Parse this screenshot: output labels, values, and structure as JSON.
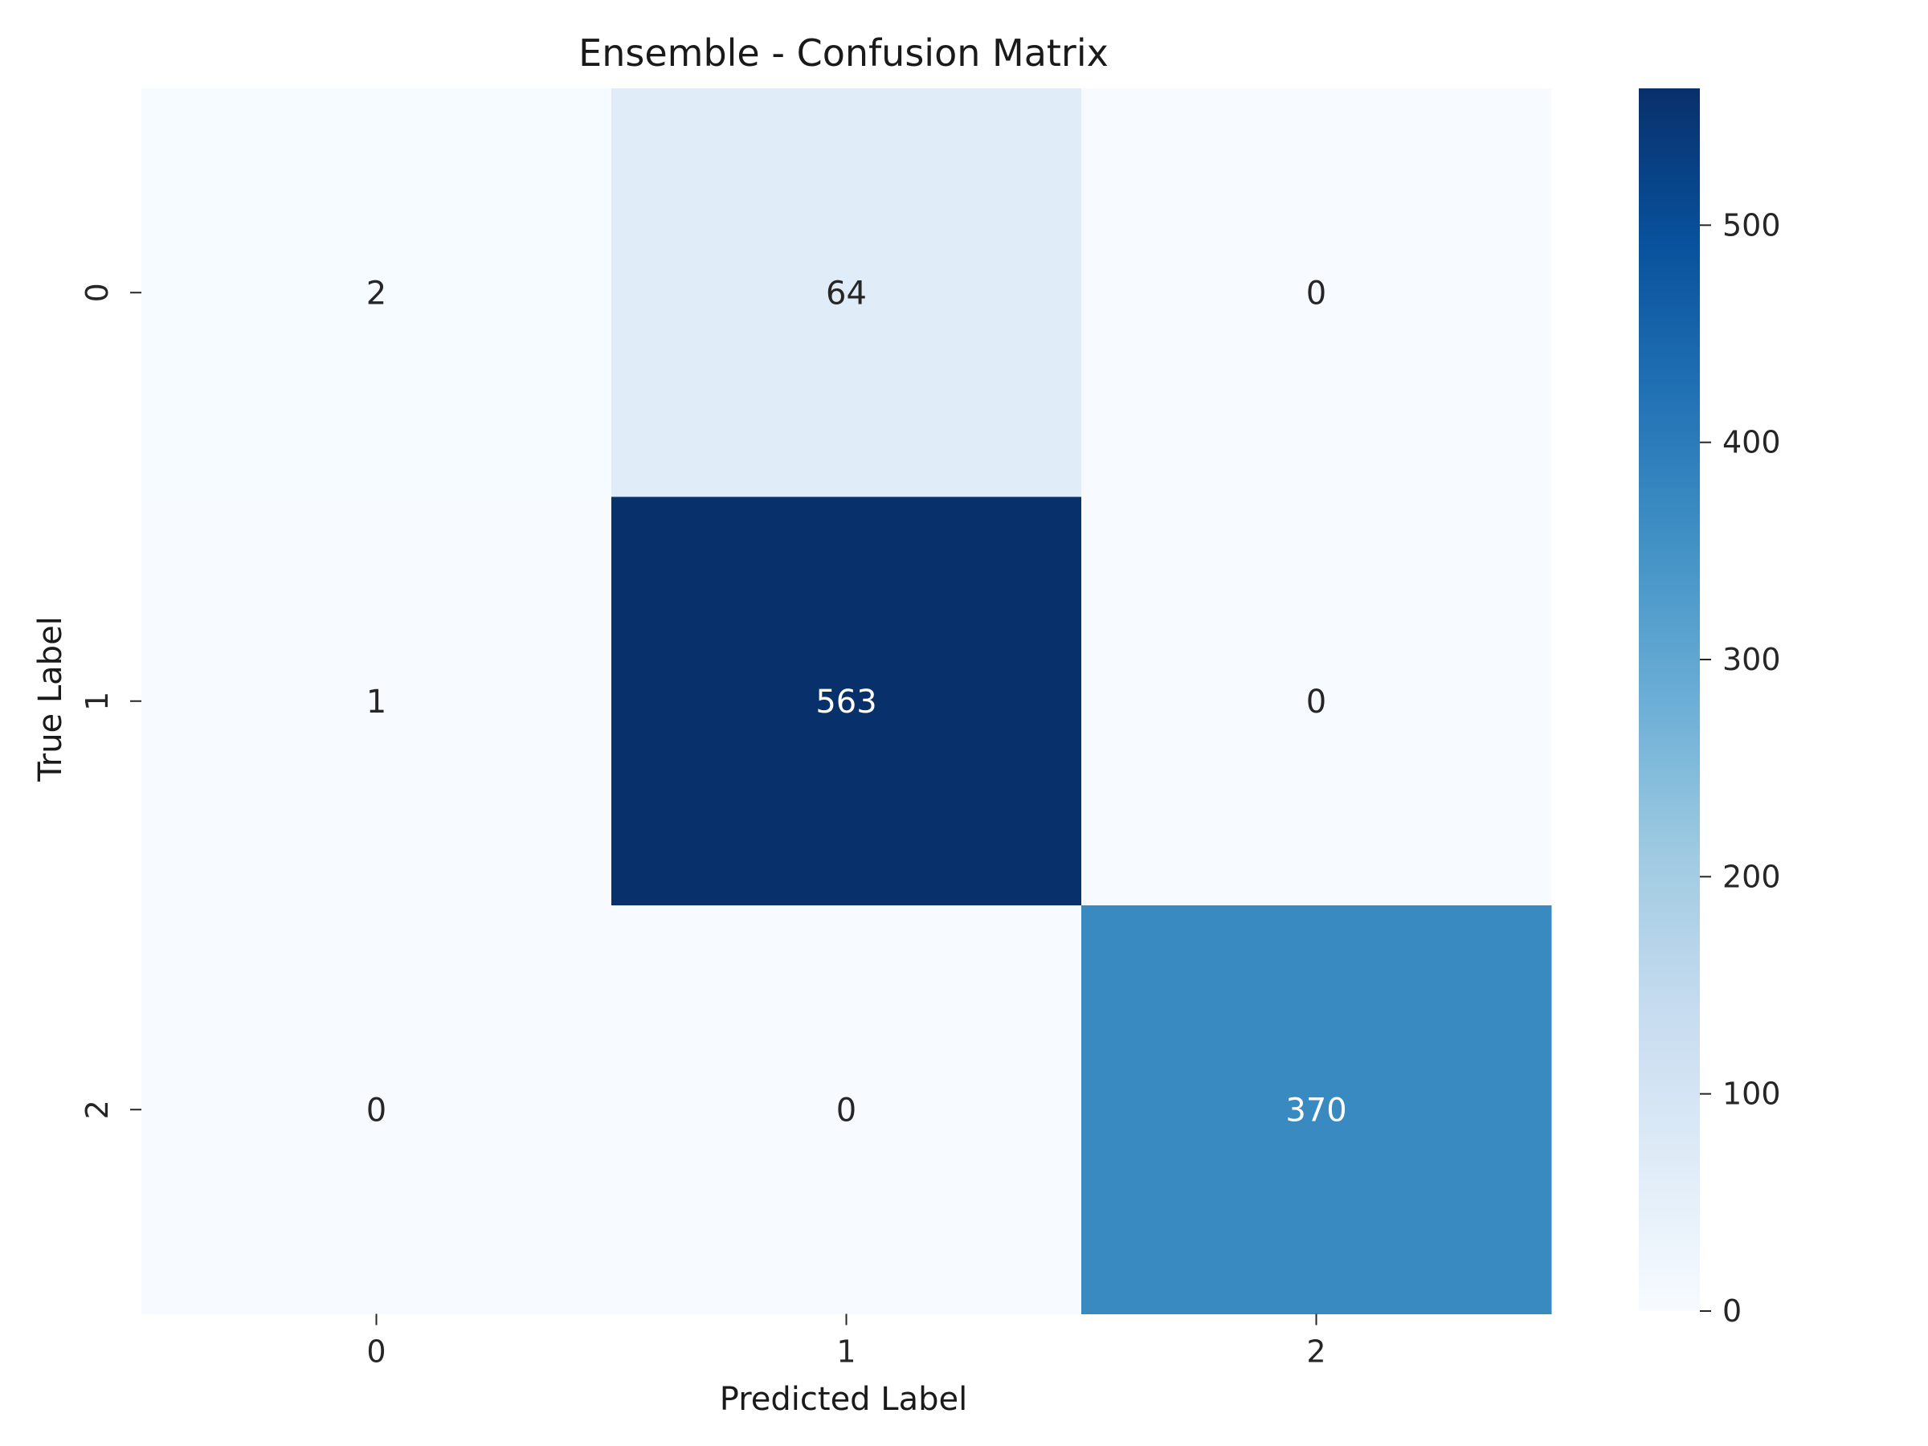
{
  "chart_data": {
    "type": "heatmap",
    "title": "Ensemble - Confusion Matrix",
    "xlabel": "Predicted Label",
    "ylabel": "True Label",
    "x_categories": [
      "0",
      "1",
      "2"
    ],
    "y_categories": [
      "0",
      "1",
      "2"
    ],
    "values": [
      [
        2,
        64,
        0
      ],
      [
        1,
        563,
        0
      ],
      [
        0,
        0,
        370
      ]
    ],
    "colormap": "Blues",
    "colorbar": {
      "range": [
        0,
        563
      ],
      "ticks": [
        "0",
        "100",
        "200",
        "300",
        "400",
        "500"
      ],
      "tick_values": [
        0,
        100,
        200,
        300,
        400,
        500
      ]
    },
    "annotations": true
  }
}
